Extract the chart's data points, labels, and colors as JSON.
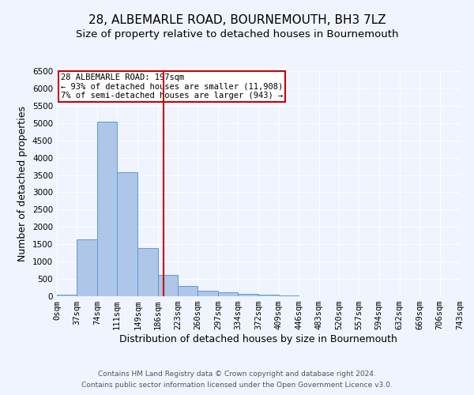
{
  "title": "28, ALBEMARLE ROAD, BOURNEMOUTH, BH3 7LZ",
  "subtitle": "Size of property relative to detached houses in Bournemouth",
  "xlabel": "Distribution of detached houses by size in Bournemouth",
  "ylabel": "Number of detached properties",
  "bin_edges": [
    0,
    37,
    74,
    111,
    149,
    186,
    223,
    260,
    297,
    334,
    372,
    409,
    446,
    483,
    520,
    557,
    594,
    632,
    669,
    706,
    743
  ],
  "bar_heights": [
    50,
    1650,
    5050,
    3580,
    1400,
    620,
    300,
    160,
    110,
    70,
    40,
    30,
    10,
    5,
    3,
    2,
    1,
    1,
    1,
    1
  ],
  "bar_color": "#aec6e8",
  "bar_edge_color": "#5b9bd5",
  "property_size": 197,
  "vline_color": "#cc0000",
  "annotation_text": "28 ALBEMARLE ROAD: 197sqm\n← 93% of detached houses are smaller (11,908)\n7% of semi-detached houses are larger (943) →",
  "annotation_box_color": "#cc0000",
  "ylim": [
    0,
    6500
  ],
  "yticks": [
    0,
    500,
    1000,
    1500,
    2000,
    2500,
    3000,
    3500,
    4000,
    4500,
    5000,
    5500,
    6000,
    6500
  ],
  "footer_line1": "Contains HM Land Registry data © Crown copyright and database right 2024.",
  "footer_line2": "Contains public sector information licensed under the Open Government Licence v3.0.",
  "background_color": "#f0f4ff",
  "grid_color": "#ffffff",
  "title_fontsize": 11,
  "subtitle_fontsize": 9.5,
  "axis_label_fontsize": 9,
  "tick_fontsize": 7.5,
  "annotation_fontsize": 7.5,
  "footer_fontsize": 6.5
}
